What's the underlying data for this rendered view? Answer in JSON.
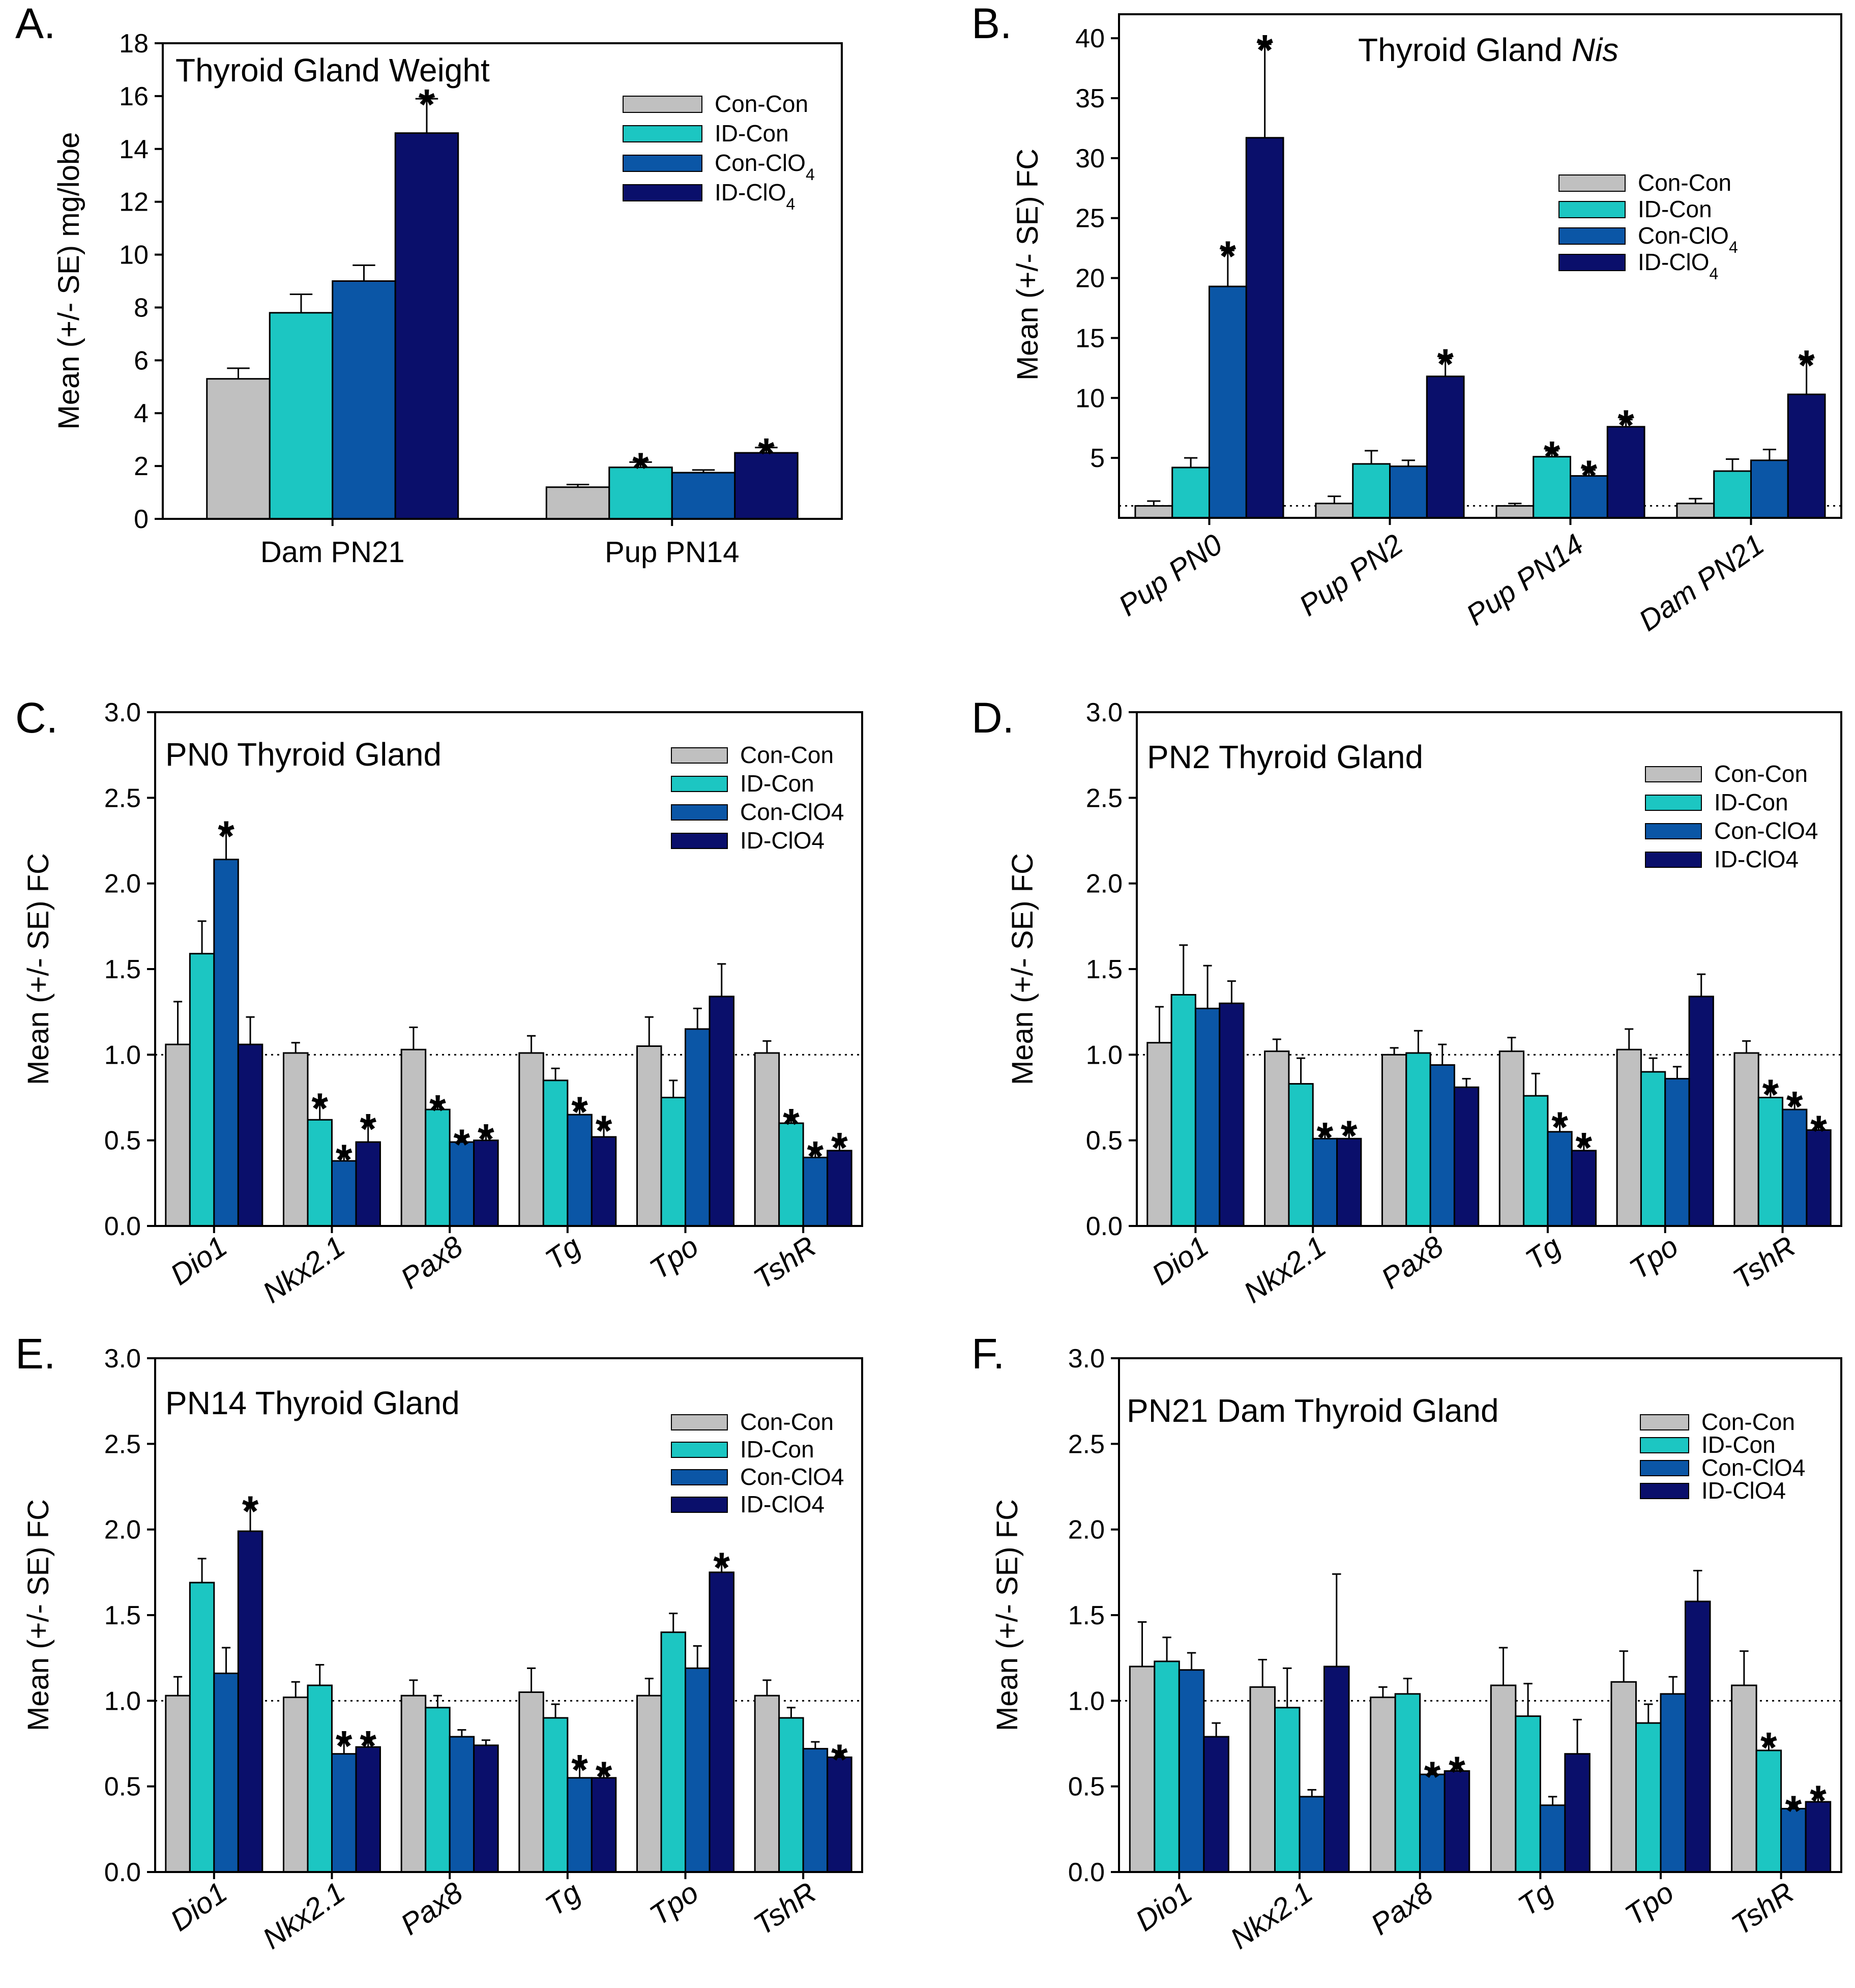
{
  "colors": {
    "Con-Con": "#c0c0c0",
    "ID-Con": "#1cc6c2",
    "Con-ClO4": "#0b56a6",
    "ID-ClO4": "#0a0f6b"
  },
  "chart_data": [
    {
      "panel": "A.",
      "type": "bar",
      "title": "Thyroid Gland Weight",
      "title_italic": "",
      "ylabel": "Mean (+/- SE) mg/lobe",
      "xlabel": "",
      "ylim": [
        0,
        18
      ],
      "yticks": [
        0,
        2,
        4,
        6,
        8,
        10,
        12,
        14,
        16,
        18
      ],
      "ytick_labels": [
        "0",
        "2",
        "4",
        "6",
        "8",
        "10",
        "12",
        "14",
        "16",
        "18"
      ],
      "categories": [
        "Dam PN21",
        "Pup PN14"
      ],
      "category_italic": false,
      "category_rotated": false,
      "legend_subscript": true,
      "legend_position": "top-right",
      "ref_line": null,
      "series": [
        {
          "name": "Con-Con",
          "values": [
            5.3,
            1.2
          ],
          "errors": [
            0.4,
            0.1
          ],
          "sig": [
            false,
            false
          ]
        },
        {
          "name": "ID-Con",
          "values": [
            7.8,
            1.95
          ],
          "errors": [
            0.7,
            0.2
          ],
          "sig": [
            false,
            true
          ]
        },
        {
          "name": "Con-ClO4",
          "values": [
            9.0,
            1.75
          ],
          "errors": [
            0.6,
            0.1
          ],
          "sig": [
            false,
            false
          ]
        },
        {
          "name": "ID-ClO4",
          "values": [
            14.6,
            2.5
          ],
          "errors": [
            1.3,
            0.2
          ],
          "sig": [
            true,
            true
          ]
        }
      ]
    },
    {
      "panel": "B.",
      "type": "bar",
      "title": "Thyroid Gland ",
      "title_italic": "Nis",
      "ylabel": "Mean (+/- SE) FC",
      "xlabel": "",
      "ylim": [
        0,
        42
      ],
      "yticks": [
        5,
        10,
        15,
        20,
        25,
        30,
        35,
        40
      ],
      "ytick_labels": [
        "5",
        "10",
        "15",
        "20",
        "25",
        "30",
        "35",
        "40"
      ],
      "categories": [
        "Pup PN0",
        "Pup PN2",
        "Pup PN14",
        "Dam PN21"
      ],
      "category_italic": true,
      "category_rotated": true,
      "legend_subscript": true,
      "legend_position": "upper-right",
      "ref_line": 1.0,
      "series": [
        {
          "name": "Con-Con",
          "values": [
            1.0,
            1.2,
            1.0,
            1.2
          ],
          "errors": [
            0.4,
            0.6,
            0.2,
            0.4
          ],
          "sig": [
            false,
            false,
            false,
            false
          ]
        },
        {
          "name": "ID-Con",
          "values": [
            4.2,
            4.5,
            5.1,
            3.9
          ],
          "errors": [
            0.8,
            1.1,
            0.5,
            1.0
          ],
          "sig": [
            false,
            false,
            true,
            false
          ]
        },
        {
          "name": "Con-ClO4",
          "values": [
            19.3,
            4.3,
            3.5,
            4.8
          ],
          "errors": [
            3.0,
            0.5,
            0.5,
            0.9
          ],
          "sig": [
            true,
            false,
            true,
            false
          ]
        },
        {
          "name": "ID-ClO4",
          "values": [
            31.7,
            11.8,
            7.6,
            10.3
          ],
          "errors": [
            7.8,
            1.5,
            0.6,
            2.9
          ],
          "sig": [
            true,
            true,
            true,
            true
          ]
        }
      ]
    },
    {
      "panel": "C.",
      "type": "bar",
      "title": "PN0 Thyroid Gland",
      "title_italic": "",
      "ylabel": "Mean (+/- SE)  FC",
      "xlabel": "",
      "ylim": [
        0,
        3
      ],
      "yticks": [
        0,
        0.5,
        1,
        1.5,
        2,
        2.5,
        3
      ],
      "ytick_labels": [
        "0.0",
        "0.5",
        "1.0",
        "1.5",
        "2.0",
        "2.5",
        "3.0"
      ],
      "categories": [
        "Dio1",
        "Nkx2.1",
        "Pax8",
        "Tg",
        "Tpo",
        "TshR"
      ],
      "category_italic": true,
      "category_rotated": true,
      "legend_subscript": false,
      "legend_position": "top-right",
      "ref_line": 1.0,
      "series": [
        {
          "name": "Con-Con",
          "values": [
            1.06,
            1.01,
            1.03,
            1.01,
            1.05,
            1.01
          ],
          "errors": [
            0.25,
            0.06,
            0.13,
            0.1,
            0.17,
            0.07
          ],
          "sig": [
            false,
            false,
            false,
            false,
            false,
            false
          ]
        },
        {
          "name": "ID-Con",
          "values": [
            1.59,
            0.62,
            0.68,
            0.85,
            0.75,
            0.6
          ],
          "errors": [
            0.19,
            0.1,
            0.03,
            0.07,
            0.1,
            0.03
          ],
          "sig": [
            false,
            true,
            true,
            false,
            false,
            true
          ]
        },
        {
          "name": "Con-ClO4",
          "values": [
            2.14,
            0.38,
            0.49,
            0.65,
            1.15,
            0.4
          ],
          "errors": [
            0.17,
            0.04,
            0.02,
            0.05,
            0.12,
            0.04
          ],
          "sig": [
            true,
            true,
            true,
            true,
            false,
            true
          ]
        },
        {
          "name": "ID-ClO4",
          "values": [
            1.06,
            0.49,
            0.5,
            0.52,
            1.34,
            0.44
          ],
          "errors": [
            0.16,
            0.11,
            0.04,
            0.07,
            0.19,
            0.05
          ],
          "sig": [
            false,
            true,
            true,
            true,
            false,
            true
          ]
        }
      ]
    },
    {
      "panel": "D.",
      "type": "bar",
      "title": "PN2 Thyroid Gland",
      "title_italic": "",
      "ylabel": "Mean (+/- SE)  FC",
      "xlabel": "",
      "ylim": [
        0,
        3
      ],
      "yticks": [
        0,
        0.5,
        1,
        1.5,
        2,
        2.5,
        3
      ],
      "ytick_labels": [
        "0.0",
        "0.5",
        "1.0",
        "1.5",
        "2.0",
        "2.5",
        "3.0"
      ],
      "categories": [
        "Dio1",
        "Nkx2.1",
        "Pax8",
        "Tg",
        "Tpo",
        "TshR"
      ],
      "category_italic": true,
      "category_rotated": true,
      "legend_subscript": false,
      "legend_position": "top-right",
      "ref_line": 1.0,
      "series": [
        {
          "name": "Con-Con",
          "values": [
            1.07,
            1.02,
            1.0,
            1.02,
            1.03,
            1.01
          ],
          "errors": [
            0.21,
            0.07,
            0.04,
            0.08,
            0.12,
            0.07
          ],
          "sig": [
            false,
            false,
            false,
            false,
            false,
            false
          ]
        },
        {
          "name": "ID-Con",
          "values": [
            1.35,
            0.83,
            1.01,
            0.76,
            0.9,
            0.75
          ],
          "errors": [
            0.29,
            0.15,
            0.13,
            0.13,
            0.08,
            0.05
          ],
          "sig": [
            false,
            false,
            false,
            false,
            false,
            true
          ]
        },
        {
          "name": "Con-ClO4",
          "values": [
            1.27,
            0.51,
            0.94,
            0.55,
            0.86,
            0.68
          ],
          "errors": [
            0.25,
            0.04,
            0.12,
            0.06,
            0.07,
            0.05
          ],
          "sig": [
            false,
            true,
            false,
            true,
            false,
            true
          ]
        },
        {
          "name": "ID-ClO4",
          "values": [
            1.3,
            0.51,
            0.81,
            0.44,
            1.34,
            0.56
          ],
          "errors": [
            0.13,
            0.05,
            0.05,
            0.05,
            0.13,
            0.03
          ],
          "sig": [
            false,
            true,
            false,
            true,
            false,
            true
          ]
        }
      ]
    },
    {
      "panel": "E.",
      "type": "bar",
      "title": "PN14 Thyroid Gland",
      "title_italic": "",
      "ylabel": "Mean (+/- SE)  FC",
      "xlabel": "",
      "ylim": [
        0,
        3
      ],
      "yticks": [
        0,
        0.5,
        1,
        1.5,
        2,
        2.5,
        3
      ],
      "ytick_labels": [
        "0.0",
        "0.5",
        "1.0",
        "1.5",
        "2.0",
        "2.5",
        "3.0"
      ],
      "categories": [
        "Dio1",
        "Nkx2.1",
        "Pax8",
        "Tg",
        "Tpo",
        "TshR"
      ],
      "category_italic": true,
      "category_rotated": true,
      "legend_subscript": false,
      "legend_position": "top-right",
      "ref_line": 1.0,
      "series": [
        {
          "name": "Con-Con",
          "values": [
            1.03,
            1.02,
            1.03,
            1.05,
            1.03,
            1.03
          ],
          "errors": [
            0.11,
            0.09,
            0.09,
            0.14,
            0.1,
            0.09
          ],
          "sig": [
            false,
            false,
            false,
            false,
            false,
            false
          ]
        },
        {
          "name": "ID-Con",
          "values": [
            1.69,
            1.09,
            0.96,
            0.9,
            1.4,
            0.9
          ],
          "errors": [
            0.14,
            0.12,
            0.07,
            0.08,
            0.11,
            0.06
          ],
          "sig": [
            false,
            false,
            false,
            false,
            false,
            false
          ]
        },
        {
          "name": "Con-ClO4",
          "values": [
            1.16,
            0.69,
            0.79,
            0.55,
            1.19,
            0.72
          ],
          "errors": [
            0.15,
            0.08,
            0.04,
            0.08,
            0.13,
            0.04
          ],
          "sig": [
            false,
            true,
            false,
            true,
            false,
            false
          ]
        },
        {
          "name": "ID-ClO4",
          "values": [
            1.99,
            0.73,
            0.74,
            0.55,
            1.75,
            0.67
          ],
          "errors": [
            0.15,
            0.04,
            0.03,
            0.04,
            0.06,
            0.02
          ],
          "sig": [
            true,
            true,
            false,
            true,
            true,
            true
          ]
        }
      ]
    },
    {
      "panel": "F.",
      "type": "bar",
      "title": "PN21 Dam Thyroid Gland",
      "title_italic": "",
      "ylabel": "Mean (+/- SE)  FC",
      "xlabel": "",
      "ylim": [
        0,
        3
      ],
      "yticks": [
        0,
        0.5,
        1,
        1.5,
        2,
        2.5,
        3
      ],
      "ytick_labels": [
        "0.0",
        "0.5",
        "1.0",
        "1.5",
        "2.0",
        "2.5",
        "3.0"
      ],
      "categories": [
        "Dio1",
        "Nkx2.1",
        "Pax8",
        "Tg",
        "Tpo",
        "TshR"
      ],
      "category_italic": true,
      "category_rotated": true,
      "legend_subscript": false,
      "legend_position": "top-right",
      "ref_line": 1.0,
      "series": [
        {
          "name": "Con-Con",
          "values": [
            1.2,
            1.08,
            1.02,
            1.09,
            1.11,
            1.09
          ],
          "errors": [
            0.26,
            0.16,
            0.06,
            0.22,
            0.18,
            0.2
          ],
          "sig": [
            false,
            false,
            false,
            false,
            false,
            false
          ]
        },
        {
          "name": "ID-Con",
          "values": [
            1.23,
            0.96,
            1.04,
            0.91,
            0.87,
            0.71
          ],
          "errors": [
            0.14,
            0.23,
            0.09,
            0.19,
            0.11,
            0.05
          ],
          "sig": [
            false,
            false,
            false,
            false,
            false,
            true
          ]
        },
        {
          "name": "Con-ClO4",
          "values": [
            1.18,
            0.44,
            0.57,
            0.39,
            1.04,
            0.37
          ],
          "errors": [
            0.1,
            0.04,
            0.02,
            0.05,
            0.1,
            0.02
          ],
          "sig": [
            false,
            false,
            true,
            false,
            false,
            true
          ]
        },
        {
          "name": "ID-ClO4",
          "values": [
            0.79,
            1.2,
            0.59,
            0.69,
            1.58,
            0.41
          ],
          "errors": [
            0.08,
            0.54,
            0.03,
            0.2,
            0.18,
            0.04
          ],
          "sig": [
            false,
            false,
            true,
            false,
            false,
            true
          ]
        }
      ]
    }
  ]
}
